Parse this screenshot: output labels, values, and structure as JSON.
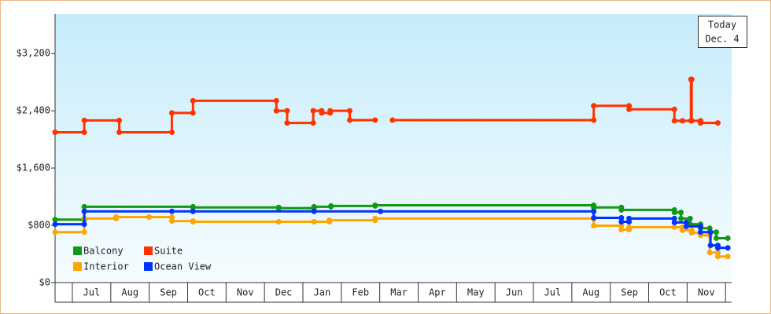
{
  "chart_data": {
    "type": "step",
    "annotation": [
      "Today",
      "Dec. 4"
    ],
    "xlim": [
      -0.45,
      17.16
    ],
    "xticks": [
      {
        "value": 0.5,
        "label": "Jul"
      },
      {
        "value": 1.5,
        "label": "Aug"
      },
      {
        "value": 2.5,
        "label": "Sep"
      },
      {
        "value": 3.5,
        "label": "Oct"
      },
      {
        "value": 4.5,
        "label": "Nov"
      },
      {
        "value": 5.5,
        "label": "Dec"
      },
      {
        "value": 6.5,
        "label": "Jan"
      },
      {
        "value": 7.5,
        "label": "Feb"
      },
      {
        "value": 8.5,
        "label": "Mar"
      },
      {
        "value": 9.5,
        "label": "Apr"
      },
      {
        "value": 10.5,
        "label": "May"
      },
      {
        "value": 11.5,
        "label": "Jun"
      },
      {
        "value": 12.5,
        "label": "Jul"
      },
      {
        "value": 13.5,
        "label": "Aug"
      },
      {
        "value": 14.5,
        "label": "Sep"
      },
      {
        "value": 15.5,
        "label": "Oct"
      },
      {
        "value": 16.5,
        "label": "Nov"
      }
    ],
    "ylim": [
      0,
      3750
    ],
    "yticks": [
      {
        "value": 0,
        "label": "$0"
      },
      {
        "value": 800,
        "label": "$800"
      },
      {
        "value": 1600,
        "label": "$1,600"
      },
      {
        "value": 2400,
        "label": "$2,400"
      },
      {
        "value": 3200,
        "label": "$3,200"
      }
    ],
    "legend": "lower left",
    "series": [
      {
        "name": "Balcony",
        "color": "#119911",
        "x": [
          -0.45,
          0.31,
          3.14,
          5.37,
          6.29,
          6.73,
          7.88,
          13.57,
          14.29,
          15.67,
          15.84,
          16.08,
          16.35,
          16.59,
          16.76,
          17.06
        ],
        "values": [
          880,
          1060,
          1050,
          1040,
          1060,
          1070,
          1080,
          1050,
          1015,
          980,
          895,
          815,
          760,
          705,
          620,
          620
        ]
      },
      {
        "name": "Suite",
        "color": "#ff3300",
        "x": [
          -0.45,
          0.31,
          1.22,
          2.59,
          3.14,
          5.31,
          5.59,
          6.27,
          6.49,
          6.71,
          7.22,
          7.88,
          null,
          8.33,
          13.57,
          14.49,
          15.67,
          15.88,
          16.1,
          16.12,
          16.35,
          16.8
        ],
        "values": [
          2100,
          2265,
          2100,
          2370,
          2540,
          2400,
          2230,
          2400,
          2370,
          2400,
          2270,
          2270,
          null,
          2270,
          2470,
          2420,
          2260,
          2260,
          2840,
          2260,
          2230,
          2230
        ]
      },
      {
        "name": "Interior",
        "color": "#ffa500",
        "x": [
          -0.45,
          0.31,
          1.14,
          2.0,
          2.59,
          3.14,
          5.37,
          6.29,
          6.69,
          7.88,
          13.57,
          14.29,
          14.49,
          15.67,
          15.88,
          16.12,
          16.35,
          16.59,
          16.8,
          17.06
        ],
        "values": [
          705,
          895,
          915,
          915,
          860,
          850,
          850,
          850,
          870,
          895,
          795,
          740,
          775,
          775,
          730,
          695,
          660,
          420,
          365,
          365
        ]
      },
      {
        "name": "Ocean View",
        "color": "#0033ff",
        "x": [
          -0.45,
          0.31,
          2.59,
          3.14,
          6.29,
          8.02,
          13.57,
          14.29,
          14.49,
          15.67,
          15.98,
          16.35,
          16.61,
          16.8,
          17.06
        ],
        "values": [
          815,
          995,
          995,
          995,
          995,
          995,
          905,
          850,
          895,
          840,
          785,
          705,
          520,
          485,
          485
        ]
      }
    ]
  }
}
